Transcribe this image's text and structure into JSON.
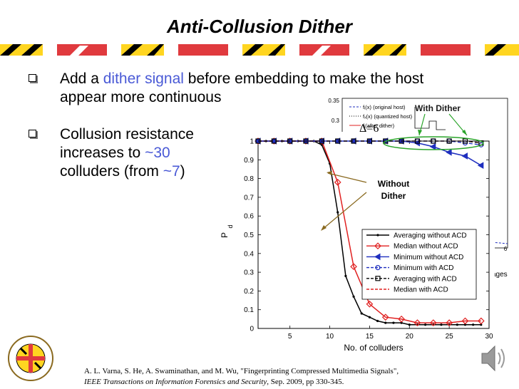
{
  "slide": {
    "title": "Anti-Collusion Dither",
    "bullet1": {
      "pre": "Add a ",
      "highlight": "dither signal",
      "post_line1": " before embedding to make the host",
      "line2": "appear more continuous"
    },
    "bullet2": {
      "line1": "Collusion resistance",
      "line2_pre": "increases to ",
      "line2_hl": "~30",
      "line3_pre": "colluders (from ",
      "line3_hl": "~7",
      "line3_post": ")"
    },
    "citation": {
      "line1": "A. L. Varna, S. He, A. Swaminathan, and M. Wu, \"Fingerprinting Compressed Multimedia Signals\",",
      "journal": "IEEE Transactions on Information Forensics and Security",
      "rest": ", Sep. 2009, pp 330-345."
    },
    "colors": {
      "accent_blue": "#4a5ad6",
      "md_red": "#e03a3e",
      "md_gold": "#ffd520"
    }
  },
  "inset": {
    "legend": [
      "fᵢ(x) (original host)",
      "fₓ(x) (quantized host)",
      "fᵢ(after dither)"
    ],
    "delta_label": "Δ=6",
    "y_ticks": [
      "0.35",
      "0.3"
    ],
    "x_tick": "6",
    "partial_label": "ages"
  },
  "annotations": {
    "with_dither": "With Dither",
    "without_dither": "Without\nDither"
  },
  "chart_data": {
    "type": "line",
    "xlabel": "No. of colluders",
    "ylabel": "P",
    "ylabel_sub": "d",
    "xlim": [
      1,
      30
    ],
    "ylim": [
      0,
      1
    ],
    "x_ticks": [
      5,
      10,
      15,
      20,
      25,
      30
    ],
    "y_ticks": [
      0,
      0.1,
      0.2,
      0.3,
      0.4,
      0.5,
      0.6,
      0.7,
      0.8,
      0.9,
      1
    ],
    "grid": false,
    "legend_position": "bottom-right",
    "series": [
      {
        "name": "Averaging without ACD",
        "color": "#000000",
        "marker": "dot",
        "dash": "solid",
        "x": [
          1,
          2,
          3,
          4,
          5,
          6,
          7,
          8,
          9,
          10,
          11,
          12,
          13,
          14,
          15,
          16,
          17,
          18,
          19,
          20,
          21,
          22,
          23,
          24,
          25,
          26,
          27,
          28,
          29
        ],
        "y": [
          1,
          1,
          1,
          1,
          1,
          1,
          1,
          1,
          0.98,
          0.88,
          0.62,
          0.28,
          0.17,
          0.08,
          0.06,
          0.04,
          0.03,
          0.03,
          0.03,
          0.02,
          0.02,
          0.02,
          0.02,
          0.02,
          0.02,
          0.02,
          0.02,
          0.02,
          0.02
        ]
      },
      {
        "name": "Median without ACD",
        "color": "#e02020",
        "marker": "diamond",
        "dash": "solid",
        "x": [
          1,
          3,
          5,
          7,
          9,
          11,
          13,
          15,
          17,
          19,
          21,
          23,
          25,
          27,
          29
        ],
        "y": [
          1,
          1,
          1,
          1,
          1,
          0.78,
          0.33,
          0.13,
          0.06,
          0.05,
          0.03,
          0.03,
          0.03,
          0.04,
          0.04
        ]
      },
      {
        "name": "Minimum without ACD",
        "color": "#1f2fbf",
        "marker": "triangle-left",
        "dash": "solid",
        "x": [
          1,
          3,
          5,
          7,
          9,
          11,
          13,
          15,
          17,
          19,
          21,
          23,
          25,
          27,
          29
        ],
        "y": [
          1,
          1,
          1,
          1,
          1,
          1,
          1,
          1,
          1,
          1,
          0.99,
          0.97,
          0.94,
          0.92,
          0.87
        ]
      },
      {
        "name": "Minimum with ACD",
        "color": "#1f2fbf",
        "marker": "circle",
        "dash": "dashed",
        "x": [
          1,
          3,
          5,
          7,
          9,
          11,
          13,
          15,
          17,
          19,
          21,
          23,
          25,
          27,
          29
        ],
        "y": [
          1,
          1,
          1,
          1,
          1,
          1,
          1,
          1,
          1,
          1,
          1,
          1,
          1,
          0.99,
          0.98
        ]
      },
      {
        "name": "Averaging with ACD",
        "color": "#000000",
        "marker": "square",
        "dash": "dashed",
        "x": [
          1,
          3,
          5,
          7,
          9,
          11,
          13,
          15,
          17,
          19,
          21,
          23,
          25,
          27,
          29
        ],
        "y": [
          1,
          1,
          1,
          1,
          1,
          1,
          1,
          1,
          1,
          1,
          1,
          1,
          1,
          1,
          0.99
        ]
      },
      {
        "name": "Median with ACD",
        "color": "#e02020",
        "marker": "none",
        "dash": "dashed",
        "x": [
          1,
          3,
          5,
          7,
          9,
          11,
          13,
          15,
          17,
          19,
          21,
          23,
          25,
          27,
          29
        ],
        "y": [
          1,
          1,
          1,
          1,
          1,
          1,
          1,
          1,
          1,
          1,
          1,
          1,
          1,
          1,
          0.99
        ]
      }
    ]
  }
}
